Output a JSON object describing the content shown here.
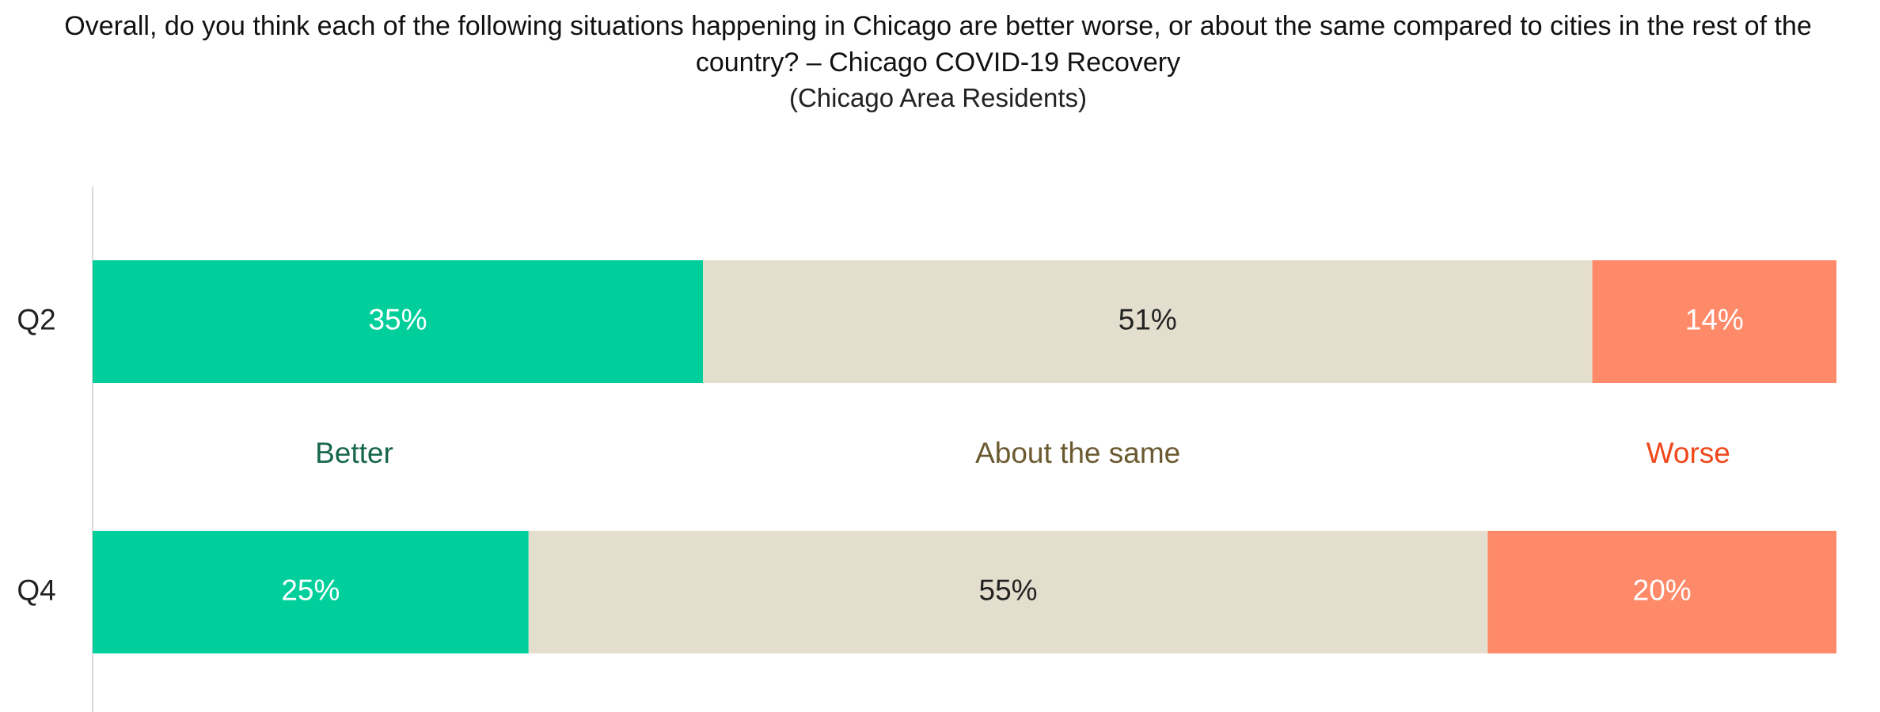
{
  "chart_data": {
    "type": "stacked_bar_horizontal",
    "title": "Overall, do you think each of the following situations happening in Chicago are better worse, or about the same compared to cities in the rest of the country? – Chicago COVID-19 Recovery",
    "subtitle": "(Chicago Area Residents)",
    "categories": [
      "Q2",
      "Q4"
    ],
    "xlim": [
      0,
      100
    ],
    "series": [
      {
        "name": "Better",
        "color": "#00cf9c",
        "label_color": "#17674a",
        "value_label_color": "#ffffff",
        "values": [
          35,
          25
        ],
        "value_labels": [
          "35%",
          "25%"
        ]
      },
      {
        "name": "About the same",
        "color": "#e3decd",
        "label_color": "#6b5a30",
        "value_label_color": "#222222",
        "values": [
          51,
          55
        ],
        "value_labels": [
          "51%",
          "55%"
        ]
      },
      {
        "name": "Worse",
        "color": "#ff8a6a",
        "label_color": "#f0461a",
        "value_label_color": "#ffffff",
        "values": [
          14,
          20
        ],
        "value_labels": [
          "14%",
          "20%"
        ]
      }
    ]
  }
}
